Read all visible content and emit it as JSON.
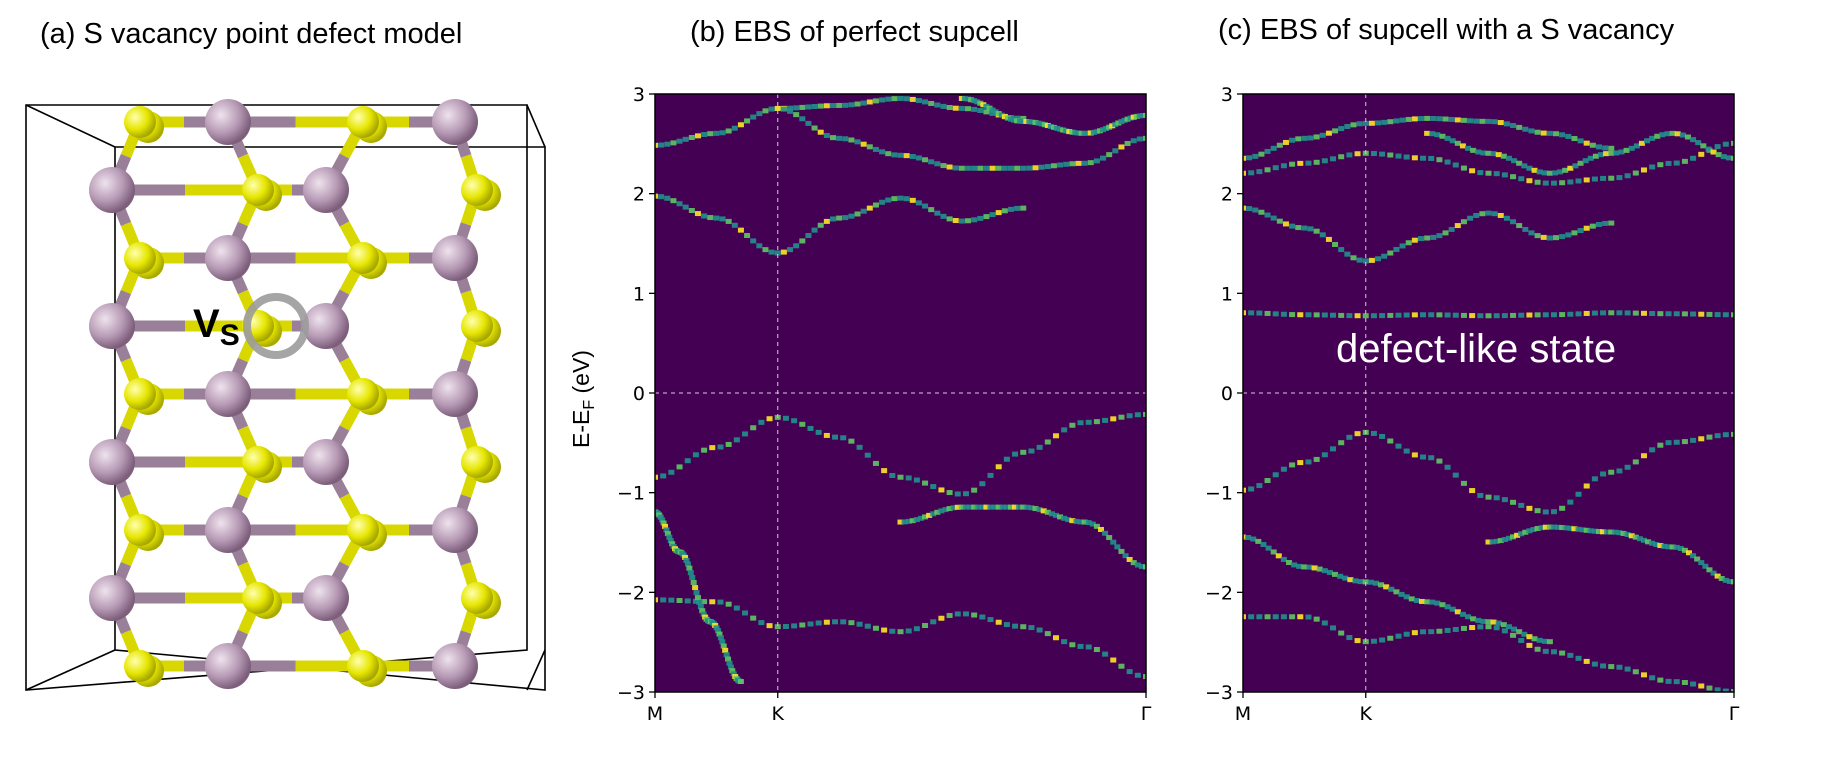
{
  "panels": {
    "a_title": "(a) S vacancy point defect model",
    "b_title": "(b) EBS of perfect supcell",
    "c_title": "(c) EBS of supcell with a S vacancy"
  },
  "structure": {
    "vacancy_label_main": "V",
    "vacancy_label_sub": "S",
    "colors": {
      "metal": "#b79ab5",
      "sulfur": "#e6e600",
      "bond_metal": "#9a7f98",
      "bond_sulfur": "#d8d800",
      "vacancy_ring": "#9b9b9b"
    }
  },
  "colors": {
    "background": "#440154",
    "band_mid": "#21918c",
    "band_high": "#5ec962",
    "band_peak": "#fde725"
  },
  "chart_data": [
    {
      "type": "heatmap",
      "title": "(b) EBS of perfect supcell",
      "ylabel_main": "E-E",
      "ylabel_sub": "F",
      "ylabel_unit": " (eV)",
      "ylim": [
        -3,
        3
      ],
      "yticks": [
        "3",
        "2",
        "1",
        "0",
        "−1",
        "−2",
        "−3"
      ],
      "ytick_values": [
        3,
        2,
        1,
        0,
        -1,
        -2,
        -3
      ],
      "xticks": [
        "M",
        "K",
        "Γ"
      ],
      "xtick_positions": [
        0,
        1,
        4
      ],
      "grid": "dashed at K and E=0",
      "series": [
        {
          "x": [
            0,
            0.5,
            1,
            1.5,
            2,
            2.5,
            3
          ],
          "y": [
            2.48,
            2.6,
            2.85,
            2.88,
            2.95,
            2.85,
            2.75
          ]
        },
        {
          "x": [
            1,
            1.5,
            2,
            2.5,
            3,
            3.5,
            4
          ],
          "y": [
            2.85,
            2.55,
            2.38,
            2.25,
            2.25,
            2.3,
            2.55
          ]
        },
        {
          "x": [
            2.5,
            3,
            3.5,
            4
          ],
          "y": [
            2.95,
            2.72,
            2.6,
            2.78
          ]
        },
        {
          "x": [
            0,
            0.5,
            1,
            1.5,
            2,
            2.5,
            3
          ],
          "y": [
            1.97,
            1.75,
            1.4,
            1.75,
            1.95,
            1.72,
            1.85
          ]
        },
        {
          "x": [
            0,
            0.5,
            1,
            1.5,
            2,
            2.5,
            3,
            3.5,
            4
          ],
          "y": [
            -0.85,
            -0.55,
            -0.25,
            -0.45,
            -0.85,
            -1.02,
            -0.6,
            -0.3,
            -0.22
          ]
        },
        {
          "x": [
            0,
            0.5,
            1,
            1.5,
            2,
            2.5,
            3,
            3.5,
            4
          ],
          "y": [
            -2.08,
            -2.1,
            -2.35,
            -2.3,
            -2.4,
            -2.22,
            -2.35,
            -2.55,
            -2.85
          ]
        },
        {
          "x": [
            2.0,
            2.5,
            3,
            3.5,
            4
          ],
          "y": [
            -1.3,
            -1.15,
            -1.15,
            -1.3,
            -1.75
          ]
        },
        {
          "x": [
            0,
            0.2,
            0.45,
            0.7
          ],
          "y": [
            -1.2,
            -1.6,
            -2.3,
            -2.9
          ]
        }
      ]
    },
    {
      "type": "heatmap",
      "title": "(c) EBS of supcell with a S vacancy",
      "annotation": "defect-like state",
      "ylim": [
        -3,
        3
      ],
      "yticks": [
        "3",
        "2",
        "1",
        "0",
        "−1",
        "−2",
        "−3"
      ],
      "ytick_values": [
        3,
        2,
        1,
        0,
        -1,
        -2,
        -3
      ],
      "xticks": [
        "M",
        "K",
        "Γ"
      ],
      "xtick_positions": [
        0,
        1,
        4
      ],
      "grid": "dashed at K and E=0",
      "series": [
        {
          "x": [
            0,
            0.5,
            1,
            1.5,
            2,
            2.5,
            3
          ],
          "y": [
            2.35,
            2.55,
            2.7,
            2.75,
            2.72,
            2.6,
            2.45
          ]
        },
        {
          "x": [
            0,
            0.5,
            1,
            1.5,
            2,
            2.5,
            3,
            3.5,
            4
          ],
          "y": [
            2.2,
            2.3,
            2.4,
            2.35,
            2.2,
            2.1,
            2.15,
            2.3,
            2.5
          ]
        },
        {
          "x": [
            1.5,
            2,
            2.5,
            3,
            3.5,
            4
          ],
          "y": [
            2.6,
            2.4,
            2.2,
            2.4,
            2.6,
            2.35
          ]
        },
        {
          "x": [
            0,
            0.5,
            1,
            1.5,
            2,
            2.5,
            3
          ],
          "y": [
            1.85,
            1.65,
            1.32,
            1.55,
            1.8,
            1.55,
            1.7
          ]
        },
        {
          "x": [
            0,
            0.5,
            1,
            1.5,
            2,
            2.5,
            3,
            3.5,
            4
          ],
          "y": [
            0.8,
            0.78,
            0.77,
            0.78,
            0.77,
            0.78,
            0.8,
            0.79,
            0.78
          ]
        },
        {
          "x": [
            0,
            0.5,
            1,
            1.5,
            2,
            2.5,
            3,
            3.5,
            4
          ],
          "y": [
            -0.98,
            -0.7,
            -0.4,
            -0.65,
            -1.05,
            -1.2,
            -0.8,
            -0.5,
            -0.42
          ]
        },
        {
          "x": [
            0,
            0.5,
            1,
            1.5,
            2,
            2.5,
            3,
            3.5,
            4
          ],
          "y": [
            -2.25,
            -2.25,
            -2.5,
            -2.4,
            -2.35,
            -2.6,
            -2.75,
            -2.9,
            -3.0
          ]
        },
        {
          "x": [
            2,
            2.5,
            3,
            3.5,
            4
          ],
          "y": [
            -1.5,
            -1.35,
            -1.4,
            -1.55,
            -1.9
          ]
        },
        {
          "x": [
            0,
            0.5,
            1,
            1.5,
            2,
            2.5
          ],
          "y": [
            -1.45,
            -1.75,
            -1.9,
            -2.1,
            -2.3,
            -2.5
          ]
        }
      ]
    }
  ]
}
